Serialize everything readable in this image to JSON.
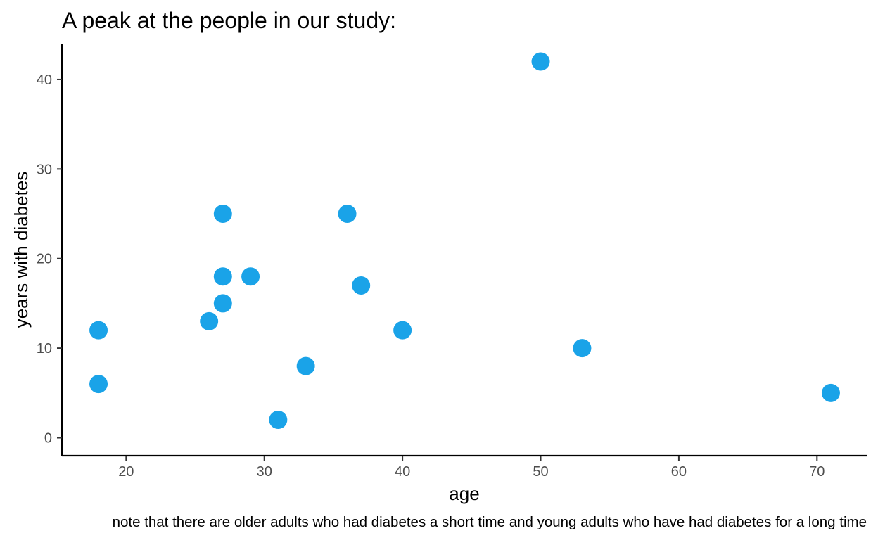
{
  "chart_data": {
    "type": "scatter",
    "title": "A peak at the people in our study:",
    "xlabel": "age",
    "ylabel": "years with diabetes",
    "caption": "note that there are older adults who had diabetes a short time and young adults who have had diabetes for a long time",
    "xlim": [
      15.35,
      73.65
    ],
    "ylim": [
      -2.0,
      44.0
    ],
    "xticks": [
      20,
      30,
      40,
      50,
      60,
      70
    ],
    "yticks": [
      0,
      10,
      20,
      30,
      40
    ],
    "grid": false,
    "legend": "none",
    "point_color": "#1AA3E8",
    "points": [
      {
        "x": 18,
        "y": 12
      },
      {
        "x": 18,
        "y": 6
      },
      {
        "x": 26,
        "y": 13
      },
      {
        "x": 27,
        "y": 25
      },
      {
        "x": 27,
        "y": 18
      },
      {
        "x": 27,
        "y": 15
      },
      {
        "x": 29,
        "y": 18
      },
      {
        "x": 31,
        "y": 2
      },
      {
        "x": 33,
        "y": 8
      },
      {
        "x": 36,
        "y": 25
      },
      {
        "x": 37,
        "y": 17
      },
      {
        "x": 40,
        "y": 12
      },
      {
        "x": 50,
        "y": 42
      },
      {
        "x": 53,
        "y": 10
      },
      {
        "x": 71,
        "y": 5
      }
    ]
  }
}
